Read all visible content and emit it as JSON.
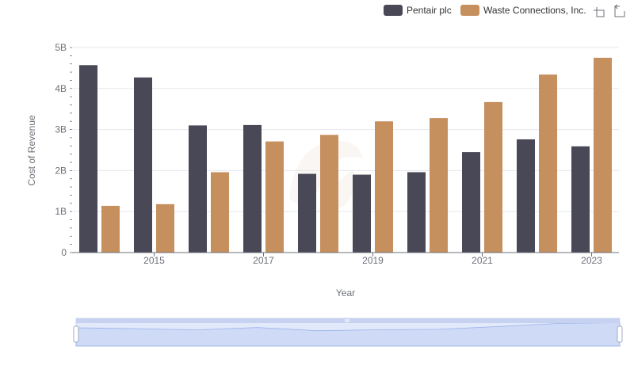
{
  "chart_data": {
    "type": "bar",
    "xlabel": "Year",
    "ylabel": "Cost of Revenue",
    "ylim": [
      0,
      5000000000
    ],
    "y_ticks": [
      {
        "value": 0,
        "label": "0"
      },
      {
        "value": 1000000000,
        "label": "1B"
      },
      {
        "value": 2000000000,
        "label": "2B"
      },
      {
        "value": 3000000000,
        "label": "3B"
      },
      {
        "value": 4000000000,
        "label": "4B"
      },
      {
        "value": 5000000000,
        "label": "5B"
      }
    ],
    "categories": [
      "2014",
      "2015",
      "2016",
      "2017",
      "2018",
      "2019",
      "2020",
      "2021",
      "2022",
      "2023"
    ],
    "x_tick_labels": [
      "2015",
      "2017",
      "2019",
      "2021",
      "2023"
    ],
    "grid": true,
    "legend_position": "top-right",
    "series": [
      {
        "name": "Pentair plc",
        "color": "#484856",
        "values": [
          4570000000,
          4270000000,
          3100000000,
          3110000000,
          1920000000,
          1900000000,
          1960000000,
          2450000000,
          2760000000,
          2590000000
        ]
      },
      {
        "name": "Waste Connections, Inc.",
        "color": "#c68f5e",
        "values": [
          1140000000,
          1180000000,
          1960000000,
          2710000000,
          2870000000,
          3200000000,
          3280000000,
          3670000000,
          4340000000,
          4750000000
        ]
      }
    ]
  },
  "toolbar": {
    "zoom_icon": "zoom-icon",
    "restore_icon": "restore-icon"
  }
}
